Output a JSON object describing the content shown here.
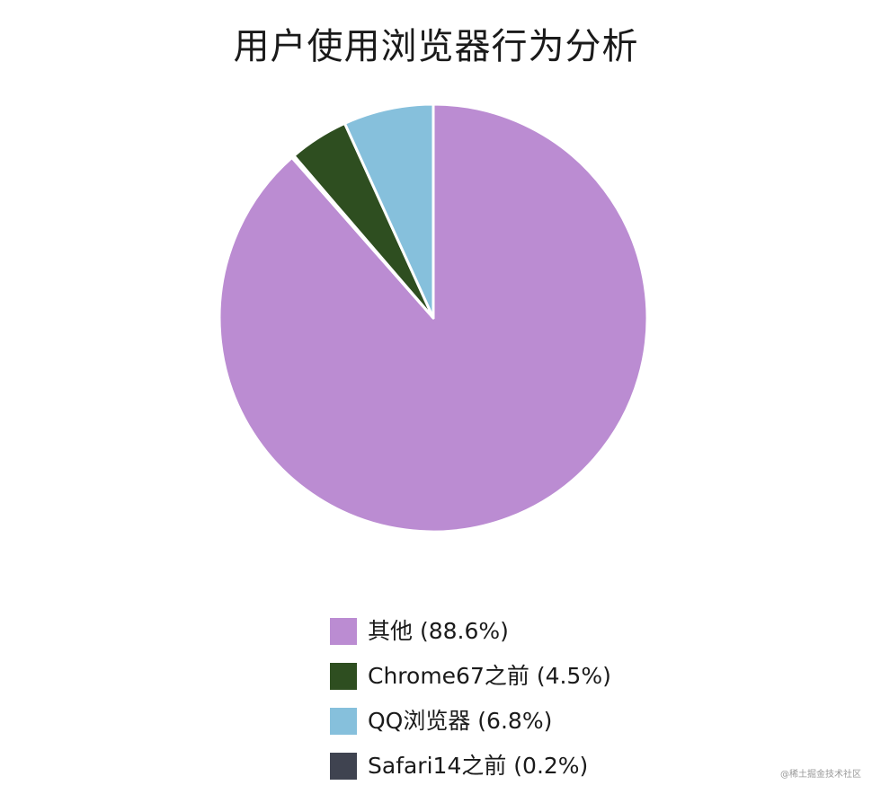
{
  "chart_data": {
    "type": "pie",
    "title": "用户使用浏览器行为分析",
    "slices": [
      {
        "label": "其他 (88.6%)",
        "value": 88.6,
        "color": "#bb8cd2"
      },
      {
        "label": "Chrome67之前 (4.5%)",
        "value": 4.5,
        "color": "#2e4e20"
      },
      {
        "label": "QQ浏览器 (6.8%)",
        "value": 6.8,
        "color": "#86c0dc"
      },
      {
        "label": "Safari14之前 (0.2%)",
        "value": 0.2,
        "color": "#3f4350"
      }
    ],
    "legend_position": "bottom"
  },
  "watermark": "@稀土掘金技术社区"
}
